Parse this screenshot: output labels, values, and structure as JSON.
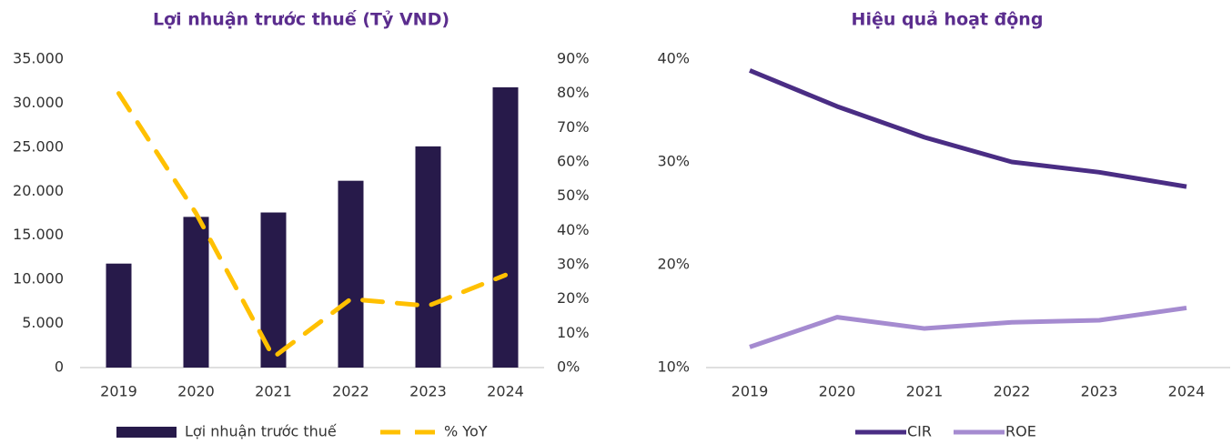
{
  "chart_data": [
    {
      "type": "combo",
      "title": "Lợi nhuận trước thuế (Tỷ VND)",
      "categories": [
        "2019",
        "2020",
        "2021",
        "2022",
        "2023",
        "2024"
      ],
      "series": [
        {
          "name": "Lợi nhuận trước thuế",
          "type": "bar",
          "color": "#271a4a",
          "values": [
            11800,
            17100,
            17600,
            21200,
            25100,
            31800
          ]
        },
        {
          "name": "% YoY",
          "type": "line",
          "axis": "y2",
          "dashed": true,
          "color": "#ffc000",
          "values": [
            80,
            45,
            3,
            20,
            18,
            27
          ]
        }
      ],
      "ylim": [
        0,
        35000
      ],
      "yticks": [
        {
          "value": 0,
          "label": "0"
        },
        {
          "value": 5000,
          "label": "5.000"
        },
        {
          "value": 10000,
          "label": "10.000"
        },
        {
          "value": 15000,
          "label": "15.000"
        },
        {
          "value": 20000,
          "label": "20.000"
        },
        {
          "value": 25000,
          "label": "25.000"
        },
        {
          "value": 30000,
          "label": "30.000"
        },
        {
          "value": 35000,
          "label": "35.000"
        }
      ],
      "y2lim": [
        0,
        90
      ],
      "y2ticks": [
        {
          "value": 0,
          "label": "0%"
        },
        {
          "value": 10,
          "label": "10%"
        },
        {
          "value": 20,
          "label": "20%"
        },
        {
          "value": 30,
          "label": "30%"
        },
        {
          "value": 40,
          "label": "40%"
        },
        {
          "value": 50,
          "label": "50%"
        },
        {
          "value": 60,
          "label": "60%"
        },
        {
          "value": 70,
          "label": "70%"
        },
        {
          "value": 80,
          "label": "80%"
        },
        {
          "value": 90,
          "label": "90%"
        }
      ],
      "legend": "bottom"
    },
    {
      "type": "line",
      "title": "Hiệu quả hoạt động",
      "categories": [
        "2019",
        "2020",
        "2021",
        "2022",
        "2023",
        "2024"
      ],
      "series": [
        {
          "name": "CIR",
          "color": "#4a2d84",
          "values": [
            38.9,
            35.4,
            32.4,
            30.0,
            29.0,
            27.6
          ]
        },
        {
          "name": "ROE",
          "color": "#a58bd0",
          "values": [
            12.0,
            14.9,
            13.8,
            14.4,
            14.6,
            15.8
          ]
        }
      ],
      "ylim": [
        10,
        40
      ],
      "yticks": [
        {
          "value": 10,
          "label": "10%"
        },
        {
          "value": 20,
          "label": "20%"
        },
        {
          "value": 30,
          "label": "30%"
        },
        {
          "value": 40,
          "label": "40%"
        }
      ],
      "legend": "bottom"
    }
  ]
}
